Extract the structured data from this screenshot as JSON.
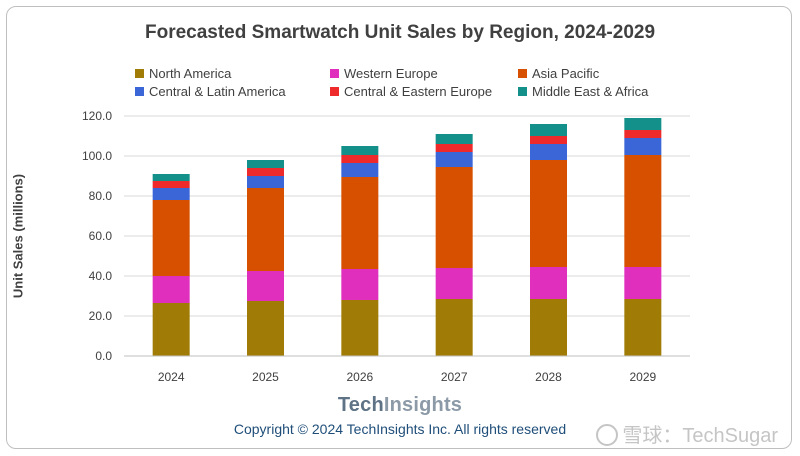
{
  "chart_data": {
    "type": "bar",
    "stacked": true,
    "title": "Forecasted Smartwatch Unit Sales by Region, 2024-2029",
    "xlabel": "",
    "ylabel": "Unit Sales (millions)",
    "ylim": [
      0,
      120
    ],
    "yticks": [
      "0.0",
      "20.0",
      "40.0",
      "60.0",
      "80.0",
      "100.0",
      "120.0"
    ],
    "ytick_values": [
      0,
      20,
      40,
      60,
      80,
      100,
      120
    ],
    "categories": [
      "2024",
      "2025",
      "2026",
      "2027",
      "2028",
      "2029"
    ],
    "legend_position": "top",
    "grid": true,
    "series": [
      {
        "name": "North America",
        "color": "#a07c06",
        "values": [
          26.5,
          27.5,
          28.0,
          28.5,
          28.5,
          28.5
        ]
      },
      {
        "name": "Western Europe",
        "color": "#e02fbd",
        "values": [
          13.5,
          15.0,
          15.5,
          15.5,
          16.0,
          16.0
        ]
      },
      {
        "name": "Asia Pacific",
        "color": "#d65000",
        "values": [
          38.0,
          41.5,
          46.0,
          50.5,
          53.5,
          56.0
        ]
      },
      {
        "name": "Central & Latin America",
        "color": "#3a66d8",
        "values": [
          6.0,
          6.0,
          7.0,
          7.5,
          8.0,
          8.5
        ]
      },
      {
        "name": "Central & Eastern Europe",
        "color": "#ee2a2a",
        "values": [
          3.5,
          4.0,
          4.0,
          4.0,
          4.0,
          4.0
        ]
      },
      {
        "name": "Middle East & Africa",
        "color": "#14908a",
        "values": [
          3.5,
          4.0,
          4.5,
          5.0,
          6.0,
          6.0
        ]
      }
    ]
  },
  "legend_order": [
    0,
    2,
    4,
    1,
    3,
    5
  ],
  "footer": {
    "brand_tech": "Tech",
    "brand_insights": "Insights",
    "copyright": "Copyright © 2024 TechInsights Inc.  All rights reserved",
    "watermark": "雪球：TechSugar"
  }
}
